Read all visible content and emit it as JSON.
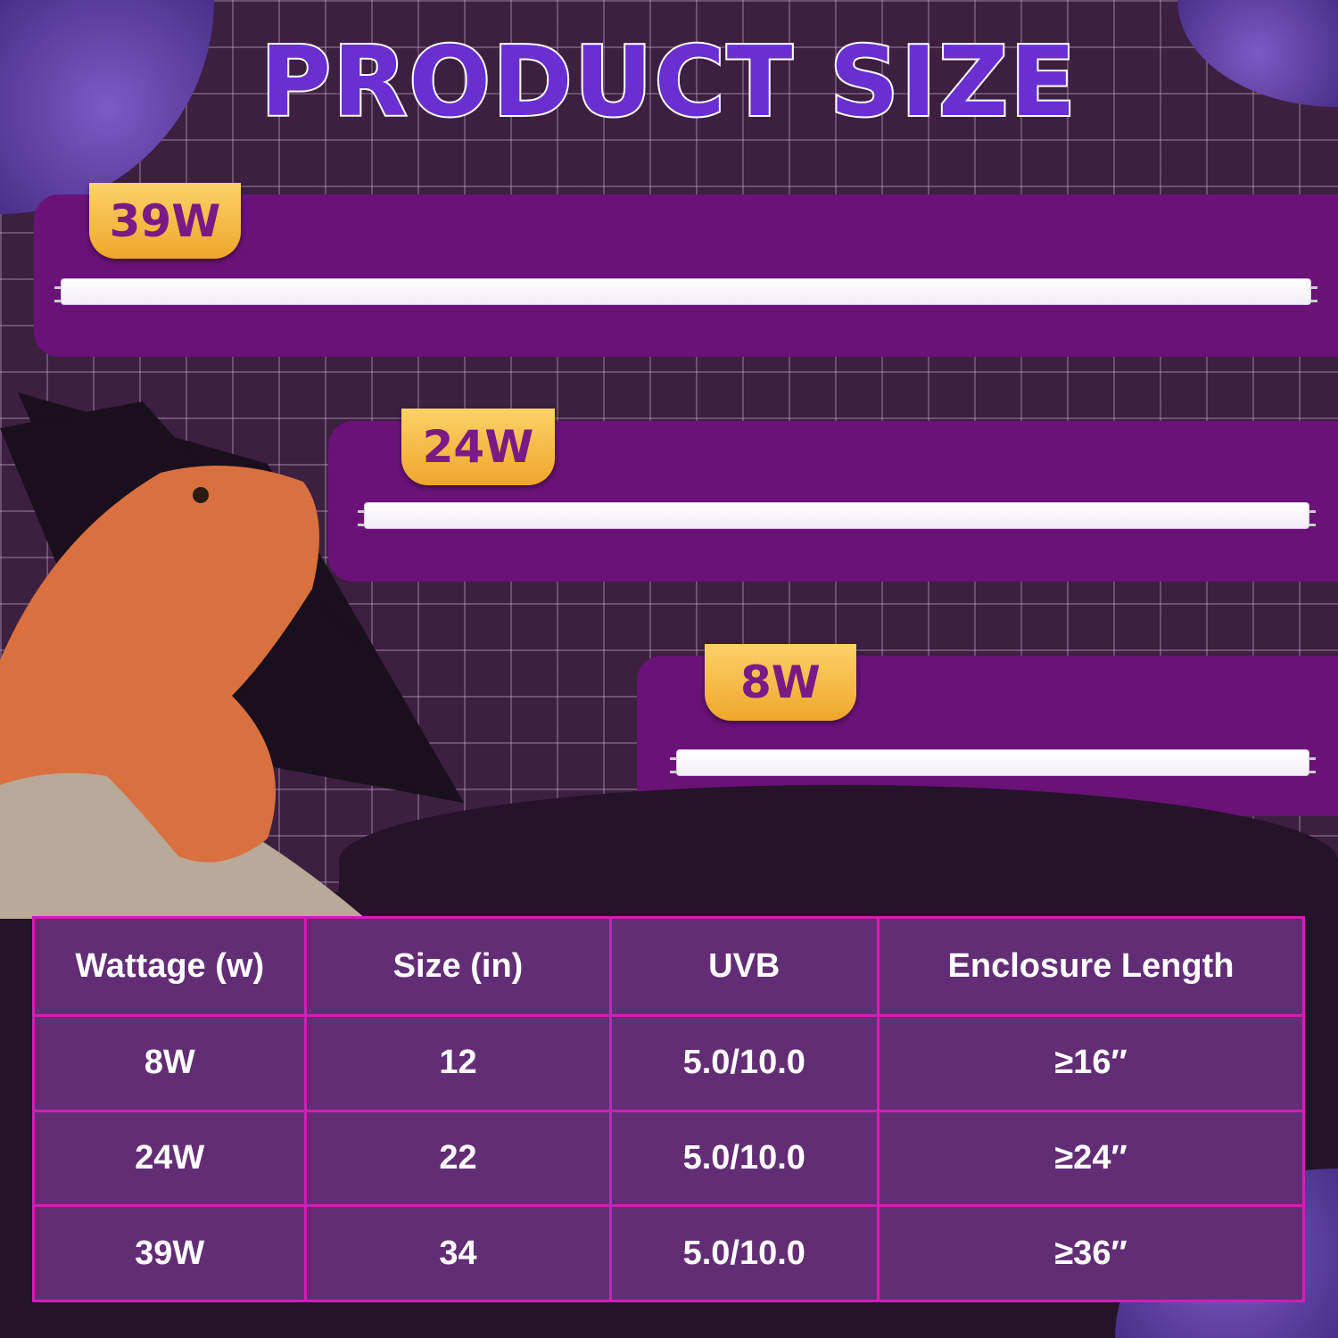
{
  "title": "PRODUCT SIZE",
  "lamps": [
    {
      "label": "39W"
    },
    {
      "label": "24W"
    },
    {
      "label": "8W"
    }
  ],
  "table": {
    "headers": [
      "Wattage (w)",
      "Size (in)",
      "UVB",
      "Enclosure Length"
    ],
    "rows": [
      [
        "8W",
        "12",
        "5.0/10.0",
        "≥16″"
      ],
      [
        "24W",
        "22",
        "5.0/10.0",
        "≥24″"
      ],
      [
        "39W",
        "34",
        "5.0/10.0",
        "≥36″"
      ]
    ]
  },
  "colors": {
    "panel": "#6a1278",
    "title": "#6a2fd0",
    "banner": "#f0a62a",
    "table_bg": "#632d76",
    "table_border": "#d11fb6"
  }
}
